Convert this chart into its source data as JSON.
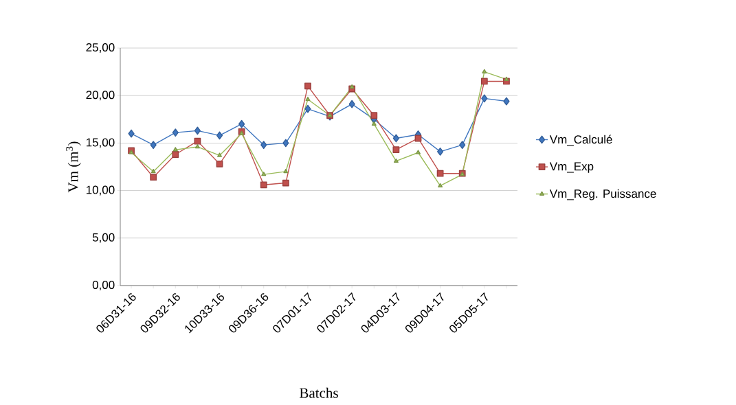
{
  "chart_data": {
    "type": "line",
    "xlabel": "Batchs",
    "ylabel": "Vm (m$^{3}$)",
    "categories": [
      "06D31-16",
      null,
      "09D32-16",
      null,
      "10D33-16",
      null,
      "09D36-16",
      null,
      "07D01-17",
      null,
      "07D02-17",
      null,
      "04D03-17",
      null,
      "09D04-17",
      null,
      "05D05-17",
      null
    ],
    "series": [
      {
        "name": "Vm_Calculé",
        "color": "#4077c0",
        "marker": "diamond",
        "values": [
          16.0,
          14.8,
          16.1,
          16.3,
          15.8,
          17.0,
          14.8,
          15.0,
          18.6,
          17.8,
          19.1,
          17.5,
          15.5,
          15.9,
          14.1,
          14.8,
          19.7,
          19.4
        ]
      },
      {
        "name": "Vm_Exp",
        "color": "#c0504d",
        "marker": "square",
        "values": [
          14.2,
          11.4,
          13.8,
          15.2,
          12.8,
          16.2,
          10.6,
          10.8,
          21.0,
          17.9,
          20.7,
          17.9,
          14.3,
          15.5,
          11.8,
          11.8,
          21.5,
          21.5
        ]
      },
      {
        "name": "Vm_Reg. Puissance",
        "color": "#9bbb59",
        "marker": "triangle",
        "values": [
          14.0,
          12.0,
          14.3,
          14.6,
          13.7,
          16.0,
          11.7,
          12.0,
          19.6,
          17.9,
          20.9,
          17.0,
          13.1,
          14.0,
          10.5,
          11.7,
          22.5,
          21.7
        ]
      }
    ],
    "ylim": [
      0,
      25
    ],
    "yticks": [
      {
        "value": 0,
        "label": "0,00"
      },
      {
        "value": 5,
        "label": "5,00"
      },
      {
        "value": 10,
        "label": "10,00"
      },
      {
        "value": 15,
        "label": "15,00"
      },
      {
        "value": 20,
        "label": "20,00"
      },
      {
        "value": 25,
        "label": "25,00"
      }
    ],
    "grid": "y",
    "legend": "right",
    "line_style": "solid"
  }
}
